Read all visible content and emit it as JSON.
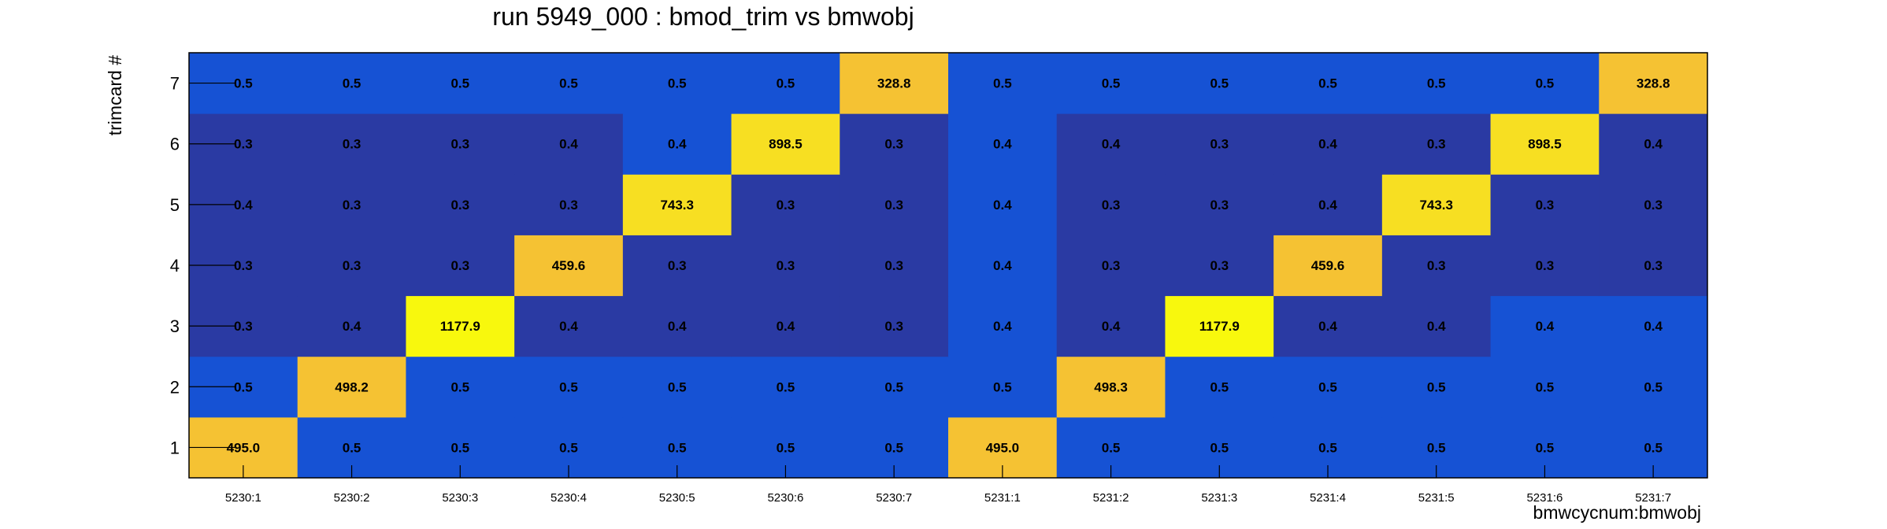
{
  "chart_data": {
    "type": "heatmap",
    "title": "run 5949_000 : bmod_trim vs bmwobj",
    "xlabel": "bmwcycnum:bmwobj",
    "ylabel": "trimcard #",
    "x_categories": [
      "5230:1",
      "5230:2",
      "5230:3",
      "5230:4",
      "5230:5",
      "5230:6",
      "5230:7",
      "5231:1",
      "5231:2",
      "5231:3",
      "5231:4",
      "5231:5",
      "5231:6",
      "5231:7"
    ],
    "y_categories": [
      "1",
      "2",
      "3",
      "4",
      "5",
      "6",
      "7"
    ],
    "values": [
      [
        495.0,
        0.5,
        0.5,
        0.5,
        0.5,
        0.5,
        0.5,
        495.0,
        0.5,
        0.5,
        0.5,
        0.5,
        0.5,
        0.5
      ],
      [
        0.5,
        498.2,
        0.5,
        0.5,
        0.5,
        0.5,
        0.5,
        0.5,
        498.3,
        0.5,
        0.5,
        0.5,
        0.5,
        0.5
      ],
      [
        0.3,
        0.4,
        1177.9,
        0.4,
        0.4,
        0.4,
        0.3,
        0.4,
        0.4,
        1177.9,
        0.4,
        0.4,
        0.4,
        0.4
      ],
      [
        0.3,
        0.3,
        0.3,
        459.6,
        0.3,
        0.3,
        0.3,
        0.4,
        0.3,
        0.3,
        459.6,
        0.3,
        0.3,
        0.3
      ],
      [
        0.4,
        0.3,
        0.3,
        0.3,
        743.3,
        0.3,
        0.3,
        0.4,
        0.3,
        0.3,
        0.4,
        743.3,
        0.3,
        0.3
      ],
      [
        0.3,
        0.3,
        0.3,
        0.4,
        0.4,
        898.5,
        0.3,
        0.4,
        0.4,
        0.3,
        0.4,
        0.3,
        898.5,
        0.4
      ],
      [
        0.5,
        0.5,
        0.5,
        0.5,
        0.5,
        0.5,
        328.8,
        0.5,
        0.5,
        0.5,
        0.5,
        0.5,
        0.5,
        328.8
      ]
    ],
    "colors": {
      "low": "#2a3aa3",
      "mid": "#1652d4",
      "high_mid": "#f5c233",
      "high": "#f7df22",
      "peak": "#f8f80d"
    }
  }
}
